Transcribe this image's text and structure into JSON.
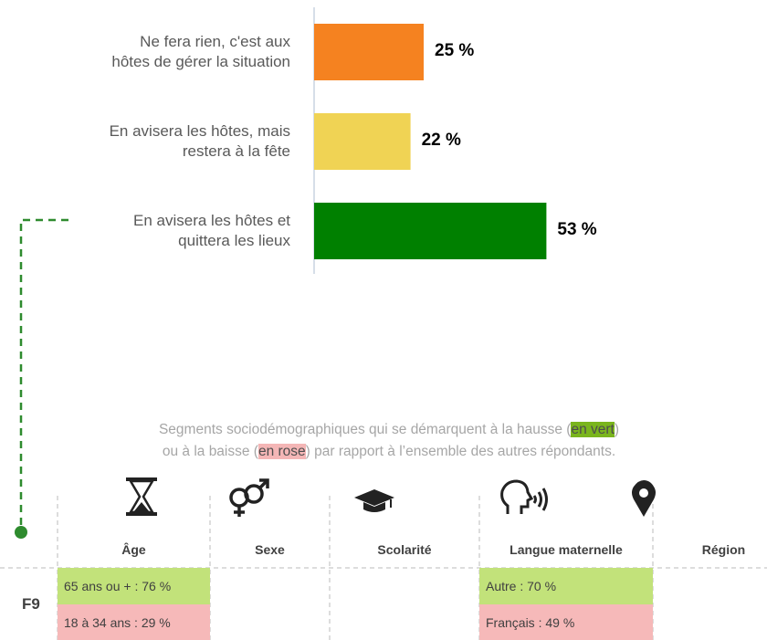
{
  "chart_data": {
    "type": "barh",
    "categories": [
      "Ne fera rien, c'est aux hôtes de gérer la situation",
      "En avisera les hôtes, mais restera à la fête",
      "En avisera les hôtes et quittera les lieux"
    ],
    "values": [
      25,
      22,
      53
    ],
    "value_labels": [
      "25 %",
      "22 %",
      "53 %"
    ],
    "colors": [
      "#f58220",
      "#f0d354",
      "#008000"
    ]
  },
  "note": {
    "line1": [
      "Segments sociodémographiques qui se démarquent à la hausse (",
      "en vert",
      ")"
    ],
    "line2": [
      "ou à la baisse (",
      "en rose",
      ") par rapport à l’ensemble des autres répondants."
    ]
  },
  "table": {
    "row_label": "F9",
    "columns": [
      {
        "name": "Âge",
        "up": "65 ans ou + : 76 %",
        "down": "18 à 34 ans : 29 %"
      },
      {
        "name": "Sexe"
      },
      {
        "name": "Scolarité"
      },
      {
        "name": "Langue maternelle",
        "up": "Autre : 70 %",
        "down": "Français : 49 %"
      },
      {
        "name": "Région"
      }
    ]
  }
}
